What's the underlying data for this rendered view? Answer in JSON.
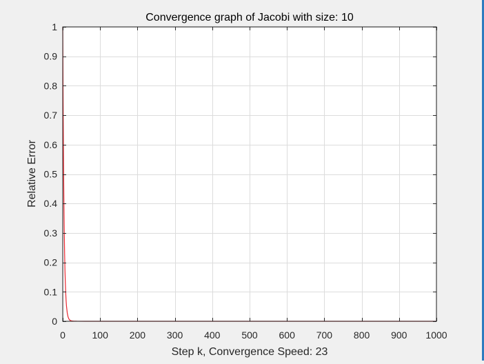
{
  "colors": {
    "figure_bg": "#f0f0f0",
    "axes_bg": "#ffffff",
    "axis_line": "#262626",
    "grid": "#dcdcdc",
    "series": "#e8262f",
    "edge_strip": "#2c7bbf"
  },
  "chart_data": {
    "type": "line",
    "title": "Convergence graph of Jacobi with size: 10",
    "xlabel": "Step k, Convergence Speed: 23",
    "ylabel": "Relative Error",
    "xlim": [
      0,
      1000
    ],
    "ylim": [
      0,
      1
    ],
    "xticks": [
      0,
      100,
      200,
      300,
      400,
      500,
      600,
      700,
      800,
      900,
      1000
    ],
    "xtick_labels": [
      "0",
      "100",
      "200",
      "300",
      "400",
      "500",
      "600",
      "700",
      "800",
      "900",
      "1000"
    ],
    "yticks": [
      0,
      0.1,
      0.2,
      0.3,
      0.4,
      0.5,
      0.6,
      0.7,
      0.8,
      0.9,
      1
    ],
    "ytick_labels": [
      "0",
      "0.1",
      "0.2",
      "0.3",
      "0.4",
      "0.5",
      "0.6",
      "0.7",
      "0.8",
      "0.9",
      "1"
    ],
    "grid": true,
    "series": [
      {
        "x": [
          0,
          1,
          2,
          3,
          4,
          5,
          6,
          7,
          8,
          9,
          10,
          12,
          14,
          16,
          18,
          20,
          23,
          26,
          30,
          35,
          40,
          60,
          100,
          200,
          300,
          400,
          500,
          600,
          700,
          800,
          900,
          1000
        ],
        "y": [
          1,
          0.75,
          0.56,
          0.42,
          0.31,
          0.23,
          0.17,
          0.13,
          0.095,
          0.07,
          0.052,
          0.029,
          0.016,
          0.009,
          0.005,
          0.003,
          0.0015,
          0.0008,
          0.0004,
          0.0002,
          0.0001,
          0,
          0,
          0,
          0,
          0,
          0,
          0,
          0,
          0,
          0,
          0
        ]
      }
    ]
  }
}
